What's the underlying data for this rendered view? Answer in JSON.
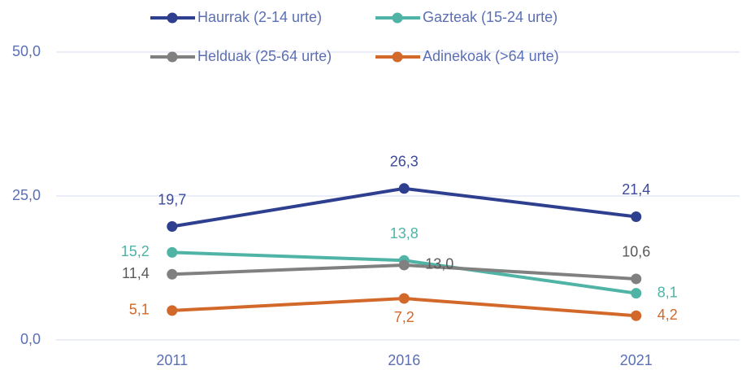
{
  "chart_data": {
    "type": "line",
    "categories": [
      "2011",
      "2016",
      "2021"
    ],
    "series": [
      {
        "name": "Haurrak (2-14 urte)",
        "color": "#2e3f8f",
        "values": [
          19.7,
          26.3,
          21.4
        ],
        "value_labels": [
          "19,7",
          "26,3",
          "21,4"
        ]
      },
      {
        "name": "Gazteak (15-24 urte)",
        "color": "#4fb3a5",
        "values": [
          15.2,
          13.8,
          8.1
        ],
        "value_labels": [
          "15,2",
          "13,8",
          "8,1"
        ]
      },
      {
        "name": "Helduak (25-64 urte)",
        "color": "#808080",
        "values": [
          11.4,
          13.0,
          10.6
        ],
        "value_labels": [
          "11,4",
          "13,0",
          "10,6"
        ]
      },
      {
        "name": "Adinekoak (>64 urte)",
        "color": "#d2692a",
        "values": [
          5.1,
          7.2,
          4.2
        ],
        "value_labels": [
          "5,1",
          "7,2",
          "4,2"
        ]
      }
    ],
    "ylim": [
      0,
      50
    ],
    "yticks": [
      {
        "value": 0,
        "label": "0,0"
      },
      {
        "value": 25,
        "label": "25,0"
      },
      {
        "value": 50,
        "label": "50,0"
      }
    ],
    "grid": true,
    "legend": "top"
  }
}
